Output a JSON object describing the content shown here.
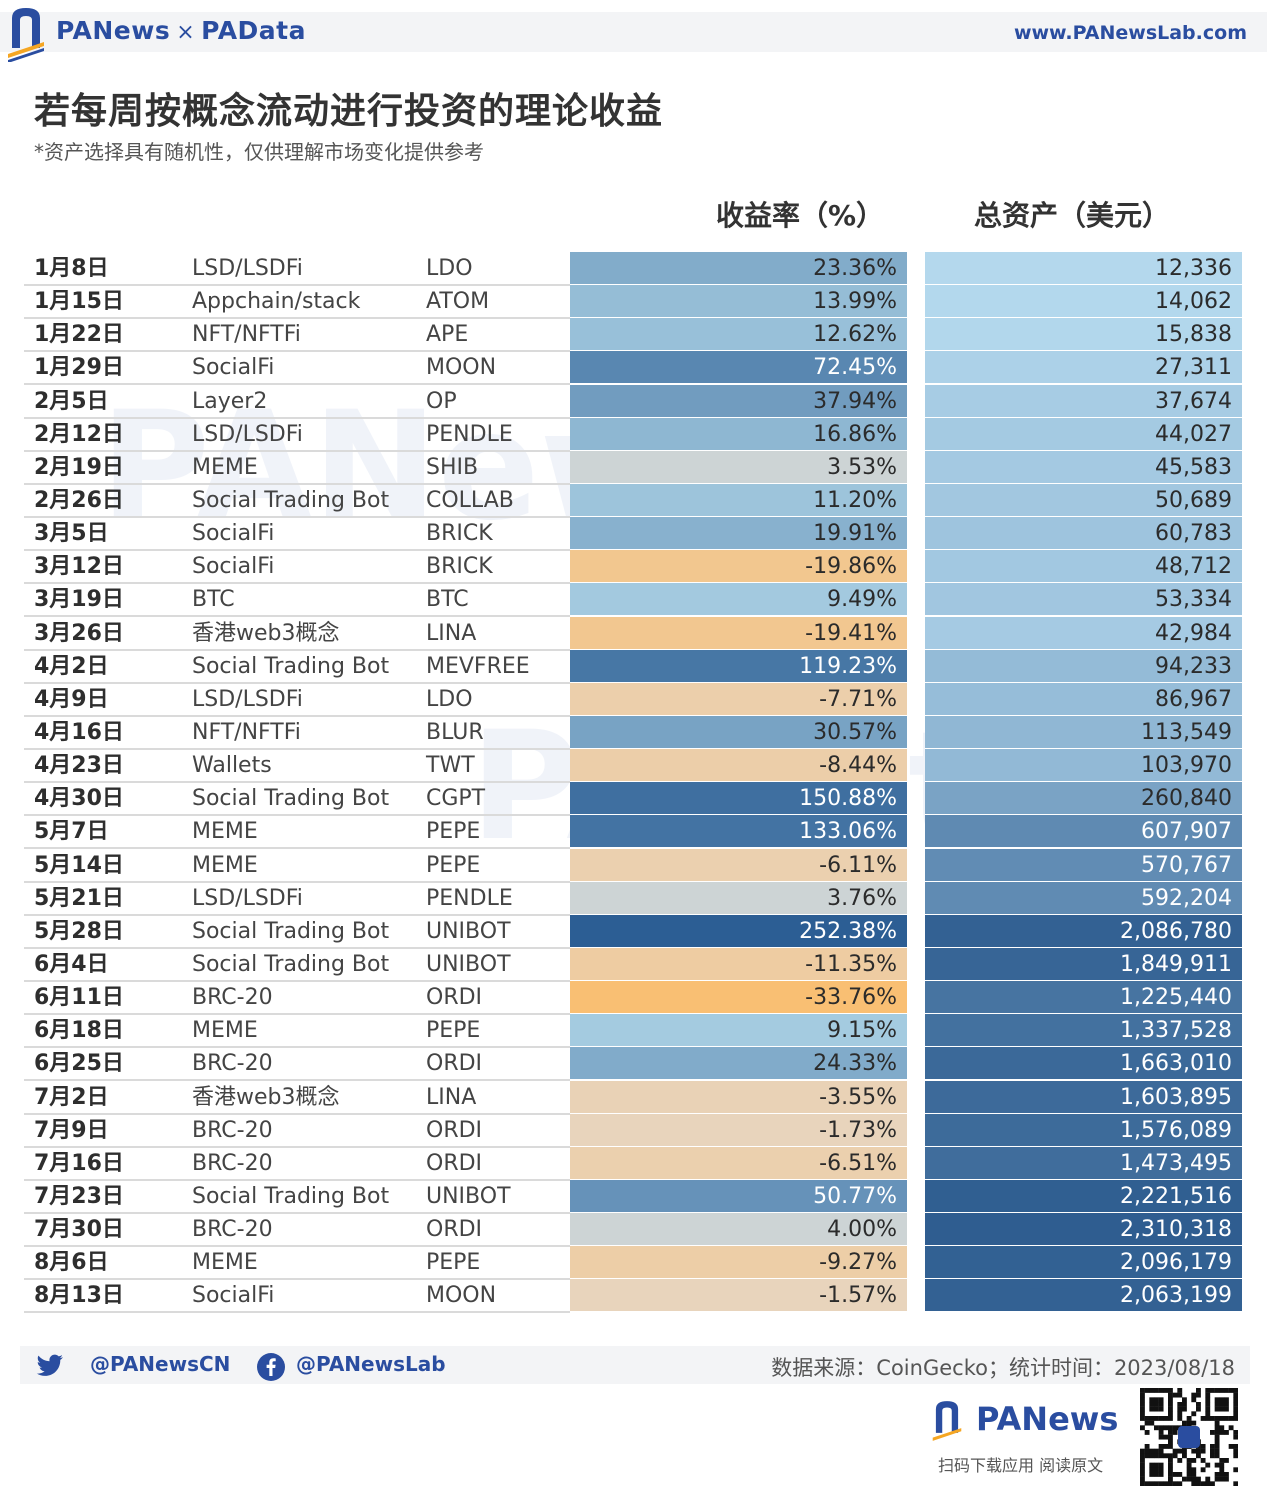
{
  "header": {
    "brand_left": "PANews",
    "brand_sep": "×",
    "brand_right": "PAData",
    "site": "www.PANewsLab.com"
  },
  "chart_data": {
    "type": "table",
    "title": "若每周按概念流动进行投资的理论收益",
    "subtitle": "*资产选择具有随机性，仅供理解市场变化提供参考",
    "columns": [
      "",
      "",
      "",
      "收益率（%）",
      "总资产（美元）"
    ],
    "rows": [
      {
        "date": "1月8日",
        "concept": "LSD/LSDFi",
        "token": "LDO",
        "return": "23.36%",
        "return_value": 23.36,
        "assets": "12,336",
        "assets_value": 12336
      },
      {
        "date": "1月15日",
        "concept": "Appchain/stack",
        "token": "ATOM",
        "return": "13.99%",
        "return_value": 13.99,
        "assets": "14,062",
        "assets_value": 14062
      },
      {
        "date": "1月22日",
        "concept": "NFT/NFTFi",
        "token": "APE",
        "return": "12.62%",
        "return_value": 12.62,
        "assets": "15,838",
        "assets_value": 15838
      },
      {
        "date": "1月29日",
        "concept": "SocialFi",
        "token": "MOON",
        "return": "72.45%",
        "return_value": 72.45,
        "assets": "27,311",
        "assets_value": 27311
      },
      {
        "date": "2月5日",
        "concept": "Layer2",
        "token": "OP",
        "return": "37.94%",
        "return_value": 37.94,
        "assets": "37,674",
        "assets_value": 37674
      },
      {
        "date": "2月12日",
        "concept": "LSD/LSDFi",
        "token": "PENDLE",
        "return": "16.86%",
        "return_value": 16.86,
        "assets": "44,027",
        "assets_value": 44027
      },
      {
        "date": "2月19日",
        "concept": "MEME",
        "token": "SHIB",
        "return": "3.53%",
        "return_value": 3.53,
        "assets": "45,583",
        "assets_value": 45583
      },
      {
        "date": "2月26日",
        "concept": "Social Trading Bot",
        "token": "COLLAB",
        "return": "11.20%",
        "return_value": 11.2,
        "assets": "50,689",
        "assets_value": 50689
      },
      {
        "date": "3月5日",
        "concept": "SocialFi",
        "token": "BRICK",
        "return": "19.91%",
        "return_value": 19.91,
        "assets": "60,783",
        "assets_value": 60783
      },
      {
        "date": "3月12日",
        "concept": "SocialFi",
        "token": "BRICK",
        "return": "-19.86%",
        "return_value": -19.86,
        "assets": "48,712",
        "assets_value": 48712
      },
      {
        "date": "3月19日",
        "concept": "BTC",
        "token": "BTC",
        "return": "9.49%",
        "return_value": 9.49,
        "assets": "53,334",
        "assets_value": 53334
      },
      {
        "date": "3月26日",
        "concept": "香港web3概念",
        "token": "LINA",
        "return": "-19.41%",
        "return_value": -19.41,
        "assets": "42,984",
        "assets_value": 42984
      },
      {
        "date": "4月2日",
        "concept": "Social Trading Bot",
        "token": "MEVFREE",
        "return": "119.23%",
        "return_value": 119.23,
        "assets": "94,233",
        "assets_value": 94233
      },
      {
        "date": "4月9日",
        "concept": "LSD/LSDFi",
        "token": "LDO",
        "return": "-7.71%",
        "return_value": -7.71,
        "assets": "86,967",
        "assets_value": 86967
      },
      {
        "date": "4月16日",
        "concept": "NFT/NFTFi",
        "token": "BLUR",
        "return": "30.57%",
        "return_value": 30.57,
        "assets": "113,549",
        "assets_value": 113549
      },
      {
        "date": "4月23日",
        "concept": "Wallets",
        "token": "TWT",
        "return": "-8.44%",
        "return_value": -8.44,
        "assets": "103,970",
        "assets_value": 103970
      },
      {
        "date": "4月30日",
        "concept": "Social Trading Bot",
        "token": "CGPT",
        "return": "150.88%",
        "return_value": 150.88,
        "assets": "260,840",
        "assets_value": 260840
      },
      {
        "date": "5月7日",
        "concept": "MEME",
        "token": "PEPE",
        "return": "133.06%",
        "return_value": 133.06,
        "assets": "607,907",
        "assets_value": 607907
      },
      {
        "date": "5月14日",
        "concept": "MEME",
        "token": "PEPE",
        "return": "-6.11%",
        "return_value": -6.11,
        "assets": "570,767",
        "assets_value": 570767
      },
      {
        "date": "5月21日",
        "concept": "LSD/LSDFi",
        "token": "PENDLE",
        "return": "3.76%",
        "return_value": 3.76,
        "assets": "592,204",
        "assets_value": 592204
      },
      {
        "date": "5月28日",
        "concept": "Social Trading Bot",
        "token": "UNIBOT",
        "return": "252.38%",
        "return_value": 252.38,
        "assets": "2,086,780",
        "assets_value": 2086780
      },
      {
        "date": "6月4日",
        "concept": "Social Trading Bot",
        "token": "UNIBOT",
        "return": "-11.35%",
        "return_value": -11.35,
        "assets": "1,849,911",
        "assets_value": 1849911
      },
      {
        "date": "6月11日",
        "concept": "BRC-20",
        "token": "ORDI",
        "return": "-33.76%",
        "return_value": -33.76,
        "assets": "1,225,440",
        "assets_value": 1225440
      },
      {
        "date": "6月18日",
        "concept": "MEME",
        "token": "PEPE",
        "return": "9.15%",
        "return_value": 9.15,
        "assets": "1,337,528",
        "assets_value": 1337528
      },
      {
        "date": "6月25日",
        "concept": "BRC-20",
        "token": "ORDI",
        "return": "24.33%",
        "return_value": 24.33,
        "assets": "1,663,010",
        "assets_value": 1663010
      },
      {
        "date": "7月2日",
        "concept": "香港web3概念",
        "token": "LINA",
        "return": "-3.55%",
        "return_value": -3.55,
        "assets": "1,603,895",
        "assets_value": 1603895
      },
      {
        "date": "7月9日",
        "concept": "BRC-20",
        "token": "ORDI",
        "return": "-1.73%",
        "return_value": -1.73,
        "assets": "1,576,089",
        "assets_value": 1576089
      },
      {
        "date": "7月16日",
        "concept": "BRC-20",
        "token": "ORDI",
        "return": "-6.51%",
        "return_value": -6.51,
        "assets": "1,473,495",
        "assets_value": 1473495
      },
      {
        "date": "7月23日",
        "concept": "Social Trading Bot",
        "token": "UNIBOT",
        "return": "50.77%",
        "return_value": 50.77,
        "assets": "2,221,516",
        "assets_value": 2221516
      },
      {
        "date": "7月30日",
        "concept": "BRC-20",
        "token": "ORDI",
        "return": "4.00%",
        "return_value": 4.0,
        "assets": "2,310,318",
        "assets_value": 2310318
      },
      {
        "date": "8月6日",
        "concept": "MEME",
        "token": "PEPE",
        "return": "-9.27%",
        "return_value": -9.27,
        "assets": "2,096,179",
        "assets_value": 2096179
      },
      {
        "date": "8月13日",
        "concept": "SocialFi",
        "token": "MOON",
        "return": "-1.57%",
        "return_value": -1.57,
        "assets": "2,063,199",
        "assets_value": 2063199
      }
    ]
  },
  "colors": {
    "brand": "#2a4da0",
    "negative_strong": "#f9bf73",
    "negative_light": "#e6d6c3",
    "neutral": "#d3d5d3",
    "positive_light": "#a9cfe3",
    "positive_strong": "#2c5e94",
    "asset_light": "#b5d9ee",
    "asset_dark": "#2d5c8f"
  },
  "footer": {
    "twitter": "@PANewsCN",
    "facebook": "@PANewsLab",
    "source": "数据来源：CoinGecko；统计时间：2023/08/18",
    "bottom_brand": "PANews",
    "scan_text": "扫码下载应用  阅读原文"
  }
}
